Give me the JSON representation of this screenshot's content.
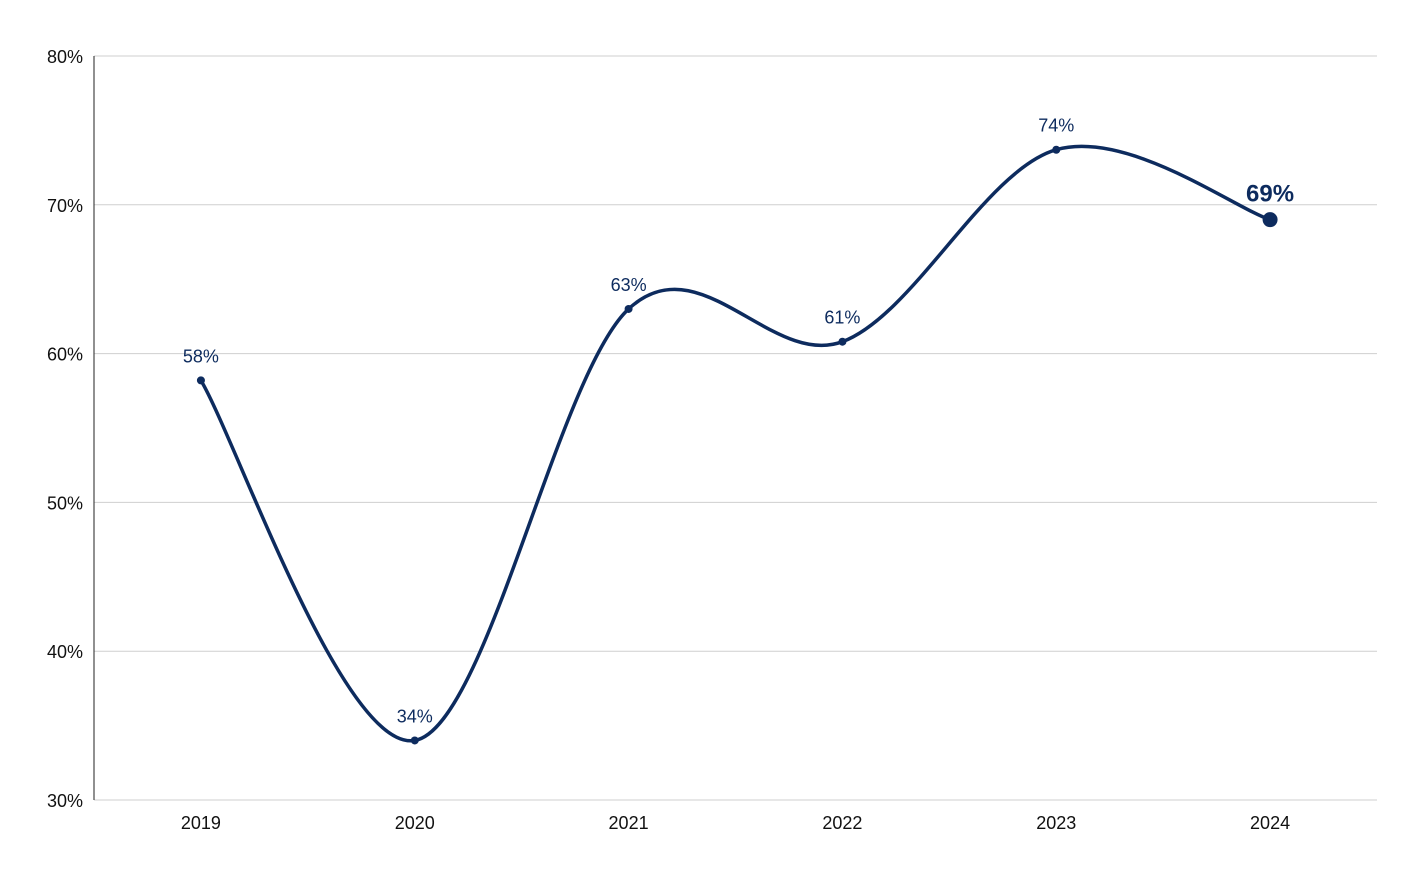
{
  "chart_data": {
    "type": "line",
    "title": "",
    "xlabel": "",
    "ylabel": "",
    "categories": [
      "2019",
      "2020",
      "2021",
      "2022",
      "2023",
      "2024"
    ],
    "series": [
      {
        "values": [
          58.2,
          34,
          63,
          60.8,
          73.7,
          69
        ],
        "labels": [
          "58%",
          "34%",
          "63%",
          "61%",
          "74%",
          "69%"
        ],
        "color": "#0d2b5e"
      }
    ],
    "highlight_index": 5,
    "ylim": [
      30,
      80
    ],
    "yticks": [
      30,
      40,
      50,
      60,
      70,
      80
    ],
    "ytick_labels": [
      "30%",
      "40%",
      "50%",
      "60%",
      "70%",
      "80%"
    ],
    "grid": "horizontal",
    "smooth": true
  }
}
